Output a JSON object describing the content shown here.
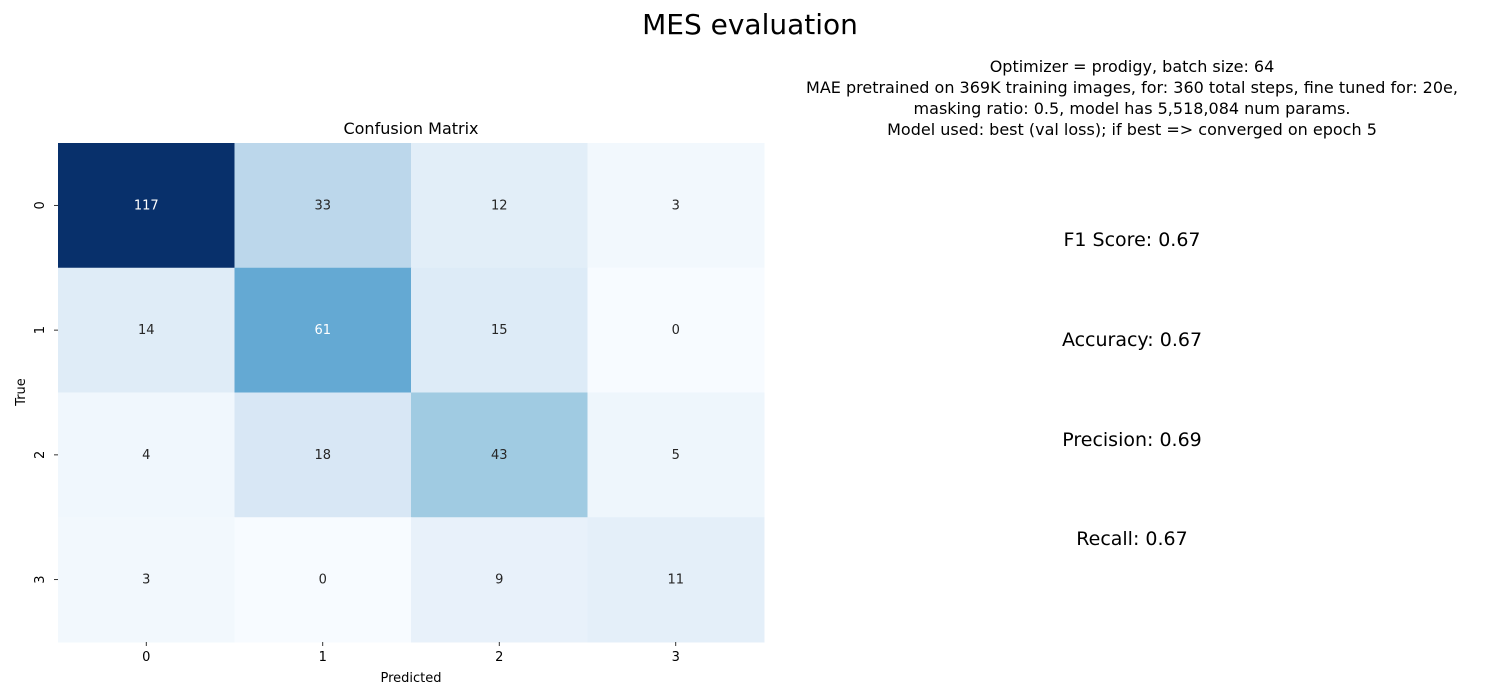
{
  "suptitle": "MES evaluation",
  "info": {
    "lines": [
      "Optimizer = prodigy, batch size: 64",
      "MAE pretrained on 369K training images, for: 360 total steps, fine tuned for: 20e,",
      "masking ratio: 0.5, model has 5,518,084 num params.",
      "Model used: best (val loss); if best => converged on epoch 5"
    ]
  },
  "metrics": {
    "f1": "F1 Score: 0.67",
    "accuracy": "Accuracy: 0.67",
    "precision": "Precision: 0.69",
    "recall": "Recall: 0.67"
  },
  "chart_data": {
    "type": "heatmap",
    "title": "Confusion Matrix",
    "xlabel": "Predicted",
    "ylabel": "True",
    "x_categories": [
      "0",
      "1",
      "2",
      "3"
    ],
    "y_categories": [
      "0",
      "1",
      "2",
      "3"
    ],
    "values": [
      [
        117,
        33,
        12,
        3
      ],
      [
        14,
        61,
        15,
        0
      ],
      [
        4,
        18,
        43,
        5
      ],
      [
        3,
        0,
        9,
        11
      ]
    ],
    "colormap": "Blues",
    "colorbar": false,
    "annotations": true
  }
}
